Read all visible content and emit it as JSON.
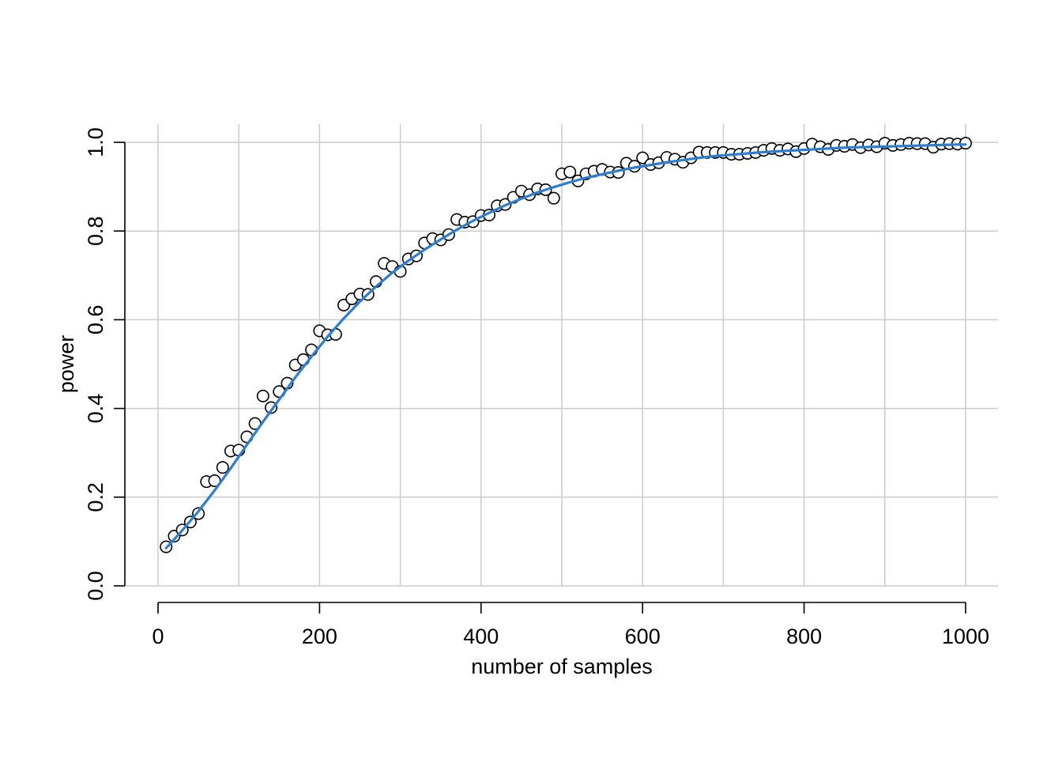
{
  "chart_data": {
    "type": "scatter",
    "xlabel": "number of samples",
    "ylabel": "power",
    "xlim": [
      0,
      1000
    ],
    "ylim": [
      0,
      1
    ],
    "x_ticks": [
      0,
      200,
      400,
      600,
      800,
      1000
    ],
    "x_tick_labels": [
      "0",
      "200",
      "400",
      "600",
      "800",
      "1000"
    ],
    "y_ticks": [
      0,
      0.2,
      0.4,
      0.6,
      0.8,
      1.0
    ],
    "y_tick_labels": [
      "0.0",
      "0.2",
      "0.4",
      "0.6",
      "0.8",
      "1.0"
    ],
    "x_grid": [
      0,
      100,
      200,
      300,
      400,
      500,
      600,
      700,
      800,
      900,
      1000
    ],
    "y_grid": [
      0,
      0.2,
      0.4,
      0.6,
      0.8,
      1.0
    ],
    "grid": true,
    "fit_color": "#2a7fd4",
    "point_fill": "#ffffff",
    "point_stroke": "#000000",
    "grid_color": "#cccccc",
    "series": [
      {
        "type": "scatter",
        "x": [
          10,
          20,
          30,
          40,
          50,
          60,
          70,
          80,
          90,
          100,
          110,
          120,
          130,
          140,
          150,
          160,
          170,
          180,
          190,
          200,
          210,
          220,
          230,
          240,
          250,
          260,
          270,
          280,
          290,
          300,
          310,
          320,
          330,
          340,
          350,
          360,
          370,
          380,
          390,
          400,
          410,
          420,
          430,
          440,
          450,
          460,
          470,
          480,
          490,
          500,
          510,
          520,
          530,
          540,
          550,
          560,
          570,
          580,
          590,
          600,
          610,
          620,
          630,
          640,
          650,
          660,
          670,
          680,
          690,
          700,
          710,
          720,
          730,
          740,
          750,
          760,
          770,
          780,
          790,
          800,
          810,
          820,
          830,
          840,
          850,
          860,
          870,
          880,
          890,
          900,
          910,
          920,
          930,
          940,
          950,
          960,
          970,
          980,
          990,
          1000
        ],
        "y": [
          0.088,
          0.112,
          0.126,
          0.144,
          0.163,
          0.235,
          0.237,
          0.267,
          0.304,
          0.306,
          0.336,
          0.366,
          0.428,
          0.402,
          0.438,
          0.457,
          0.498,
          0.51,
          0.532,
          0.575,
          0.566,
          0.567,
          0.633,
          0.647,
          0.658,
          0.657,
          0.686,
          0.727,
          0.72,
          0.709,
          0.737,
          0.744,
          0.773,
          0.783,
          0.78,
          0.792,
          0.826,
          0.82,
          0.821,
          0.835,
          0.836,
          0.857,
          0.86,
          0.876,
          0.89,
          0.882,
          0.895,
          0.893,
          0.874,
          0.929,
          0.933,
          0.913,
          0.929,
          0.935,
          0.939,
          0.933,
          0.932,
          0.953,
          0.946,
          0.965,
          0.95,
          0.954,
          0.966,
          0.962,
          0.955,
          0.965,
          0.978,
          0.977,
          0.977,
          0.977,
          0.973,
          0.973,
          0.975,
          0.977,
          0.982,
          0.986,
          0.982,
          0.985,
          0.979,
          0.986,
          0.996,
          0.99,
          0.984,
          0.993,
          0.991,
          0.995,
          0.988,
          0.994,
          0.99,
          0.998,
          0.993,
          0.995,
          0.998,
          0.997,
          0.997,
          0.989,
          0.996,
          0.997,
          0.996,
          0.998
        ]
      },
      {
        "type": "line",
        "x": [
          10,
          30,
          50,
          70,
          90,
          110,
          130,
          150,
          170,
          190,
          210,
          230,
          250,
          270,
          290,
          310,
          330,
          350,
          370,
          390,
          410,
          430,
          450,
          470,
          490,
          510,
          530,
          550,
          570,
          590,
          610,
          630,
          650,
          670,
          690,
          710,
          730,
          750,
          770,
          790,
          810,
          830,
          850,
          870,
          890,
          910,
          930,
          950,
          970,
          990,
          1000
        ],
        "y": [
          0.085,
          0.125,
          0.168,
          0.215,
          0.265,
          0.318,
          0.37,
          0.42,
          0.47,
          0.517,
          0.562,
          0.603,
          0.641,
          0.675,
          0.706,
          0.733,
          0.758,
          0.781,
          0.803,
          0.823,
          0.841,
          0.858,
          0.873,
          0.887,
          0.899,
          0.91,
          0.92,
          0.928,
          0.936,
          0.943,
          0.949,
          0.955,
          0.96,
          0.965,
          0.969,
          0.972,
          0.975,
          0.978,
          0.98,
          0.982,
          0.984,
          0.986,
          0.988,
          0.989,
          0.99,
          0.991,
          0.992,
          0.993,
          0.994,
          0.995,
          0.995
        ]
      }
    ]
  }
}
